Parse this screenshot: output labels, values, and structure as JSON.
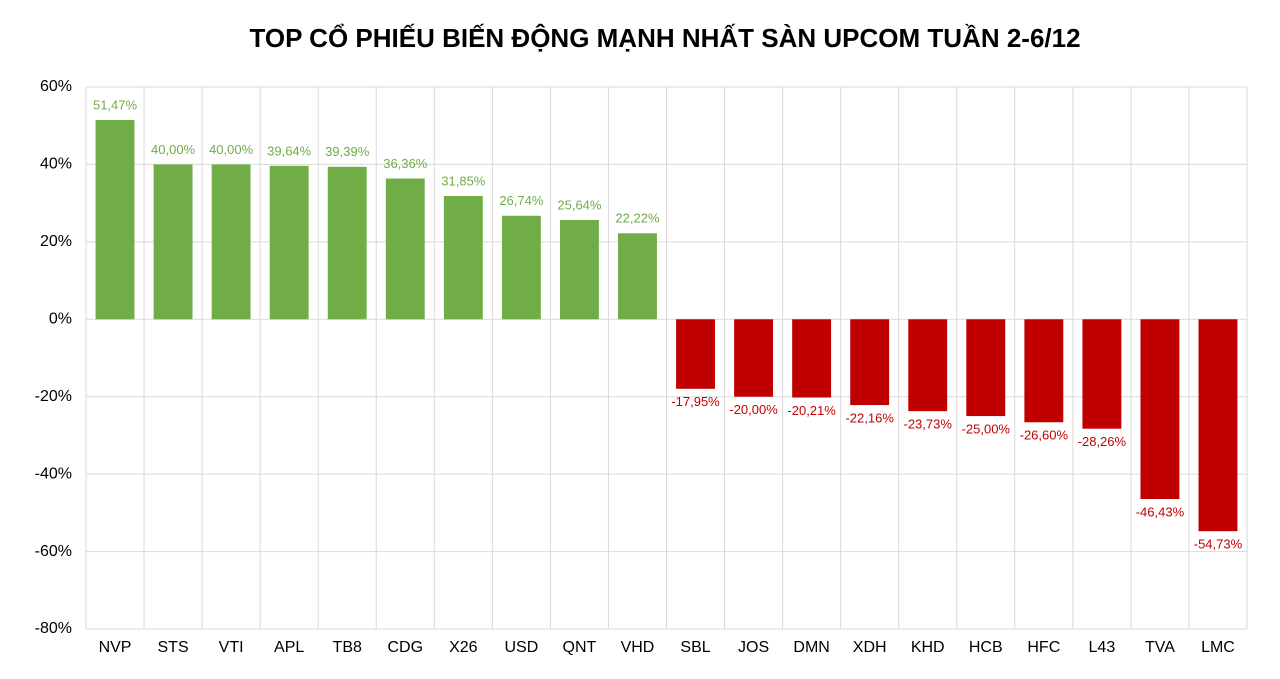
{
  "chart_data": {
    "type": "bar",
    "title": "TOP CỔ PHIẾU BIẾN ĐỘNG MẠNH NHẤT SÀN UPCOM TUẦN 2-6/12",
    "categories": [
      "NVP",
      "STS",
      "VTI",
      "APL",
      "TB8",
      "CDG",
      "X26",
      "USD",
      "QNT",
      "VHD",
      "SBL",
      "JOS",
      "DMN",
      "XDH",
      "KHD",
      "HCB",
      "HFC",
      "L43",
      "TVA",
      "LMC"
    ],
    "values": [
      51.47,
      40,
      40,
      39.64,
      39.39,
      36.36,
      31.85,
      26.74,
      25.64,
      22.22,
      -17.95,
      -20,
      -20.21,
      -22.16,
      -23.73,
      -25,
      -26.6,
      -28.26,
      -46.43,
      -54.73
    ],
    "value_labels": [
      "51,47%",
      "40,00%",
      "40,00%",
      "39,64%",
      "39,39%",
      "36,36%",
      "31,85%",
      "26,74%",
      "25,64%",
      "22,22%",
      "-17,95%",
      "-20,00%",
      "-20,21%",
      "-22,16%",
      "-23,73%",
      "-25,00%",
      "-26,60%",
      "-28,26%",
      "-46,43%",
      "-54,73%"
    ],
    "positive_color": "#70ad47",
    "negative_color": "#c00000",
    "ylim": [
      -80,
      60
    ],
    "yticks": [
      {
        "value": -80,
        "label": "-80%"
      },
      {
        "value": -60,
        "label": "-60%"
      },
      {
        "value": -40,
        "label": "-40%"
      },
      {
        "value": -20,
        "label": "-20%"
      },
      {
        "value": 0,
        "label": "0%"
      },
      {
        "value": 20,
        "label": "20%"
      },
      {
        "value": 40,
        "label": "40%"
      },
      {
        "value": 60,
        "label": "60%"
      }
    ],
    "grid": true
  }
}
